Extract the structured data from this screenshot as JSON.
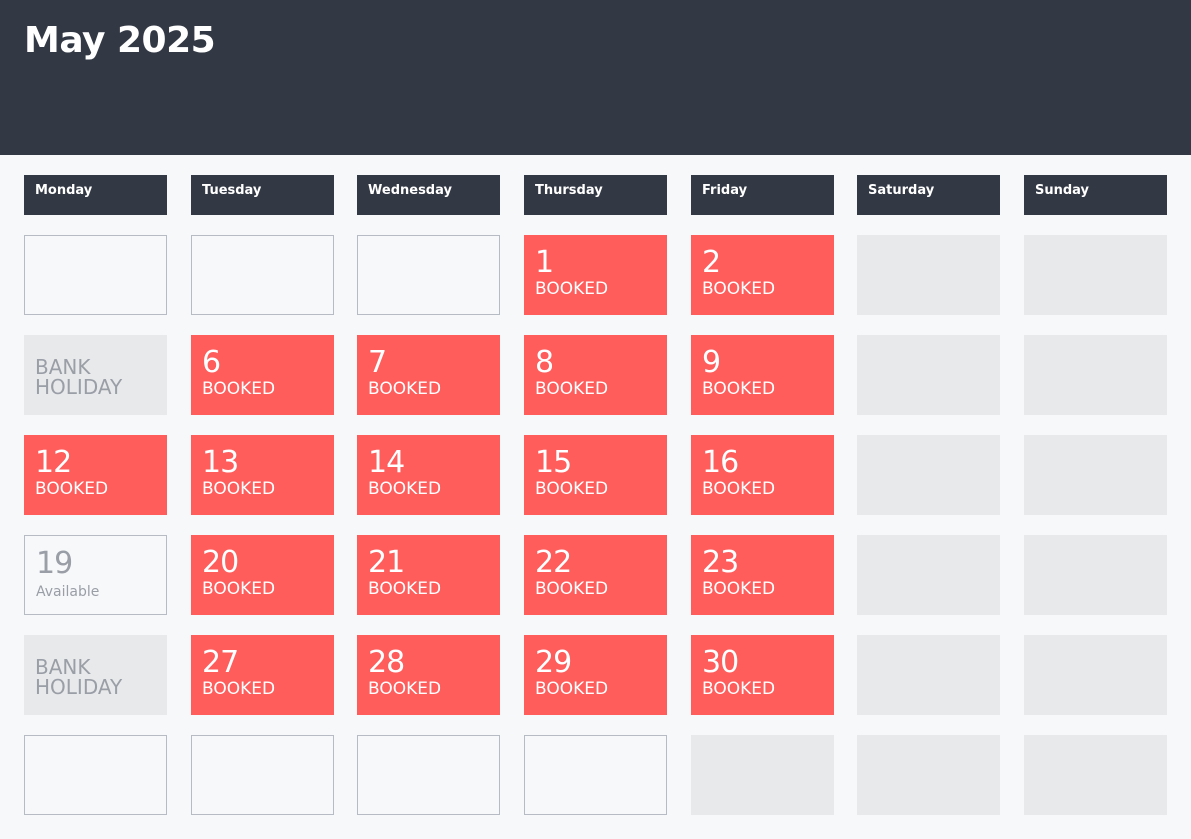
{
  "header": {
    "title": "May 2025",
    "background": "#323844"
  },
  "colors": {
    "booked": "#ff5c5c",
    "weekend": "#e8e9eb",
    "holiday": "#e8e9eb",
    "page": "#f7f8fa"
  },
  "weekdays": [
    "Monday",
    "Tuesday",
    "Wednesday",
    "Thursday",
    "Friday",
    "Saturday",
    "Sunday"
  ],
  "weeks": [
    [
      {
        "type": "empty"
      },
      {
        "type": "empty"
      },
      {
        "type": "empty"
      },
      {
        "type": "booked",
        "day": "1",
        "status": "BOOKED"
      },
      {
        "type": "booked",
        "day": "2",
        "status": "BOOKED"
      },
      {
        "type": "weekend"
      },
      {
        "type": "weekend"
      }
    ],
    [
      {
        "type": "holiday",
        "label": "BANK\nHOLIDAY"
      },
      {
        "type": "booked",
        "day": "6",
        "status": "BOOKED"
      },
      {
        "type": "booked",
        "day": "7",
        "status": "BOOKED"
      },
      {
        "type": "booked",
        "day": "8",
        "status": "BOOKED"
      },
      {
        "type": "booked",
        "day": "9",
        "status": "BOOKED"
      },
      {
        "type": "weekend"
      },
      {
        "type": "weekend"
      }
    ],
    [
      {
        "type": "booked",
        "day": "12",
        "status": "BOOKED"
      },
      {
        "type": "booked",
        "day": "13",
        "status": "BOOKED"
      },
      {
        "type": "booked",
        "day": "14",
        "status": "BOOKED"
      },
      {
        "type": "booked",
        "day": "15",
        "status": "BOOKED"
      },
      {
        "type": "booked",
        "day": "16",
        "status": "BOOKED"
      },
      {
        "type": "weekend"
      },
      {
        "type": "weekend"
      }
    ],
    [
      {
        "type": "available",
        "day": "19",
        "status": "Available"
      },
      {
        "type": "booked",
        "day": "20",
        "status": "BOOKED"
      },
      {
        "type": "booked",
        "day": "21",
        "status": "BOOKED"
      },
      {
        "type": "booked",
        "day": "22",
        "status": "BOOKED"
      },
      {
        "type": "booked",
        "day": "23",
        "status": "BOOKED"
      },
      {
        "type": "weekend"
      },
      {
        "type": "weekend"
      }
    ],
    [
      {
        "type": "holiday",
        "label": "BANK\nHOLIDAY"
      },
      {
        "type": "booked",
        "day": "27",
        "status": "BOOKED"
      },
      {
        "type": "booked",
        "day": "28",
        "status": "BOOKED"
      },
      {
        "type": "booked",
        "day": "29",
        "status": "BOOKED"
      },
      {
        "type": "booked",
        "day": "30",
        "status": "BOOKED"
      },
      {
        "type": "weekend"
      },
      {
        "type": "weekend"
      }
    ],
    [
      {
        "type": "empty"
      },
      {
        "type": "empty"
      },
      {
        "type": "empty"
      },
      {
        "type": "empty"
      },
      {
        "type": "weekend"
      },
      {
        "type": "weekend"
      },
      {
        "type": "weekend"
      }
    ]
  ]
}
